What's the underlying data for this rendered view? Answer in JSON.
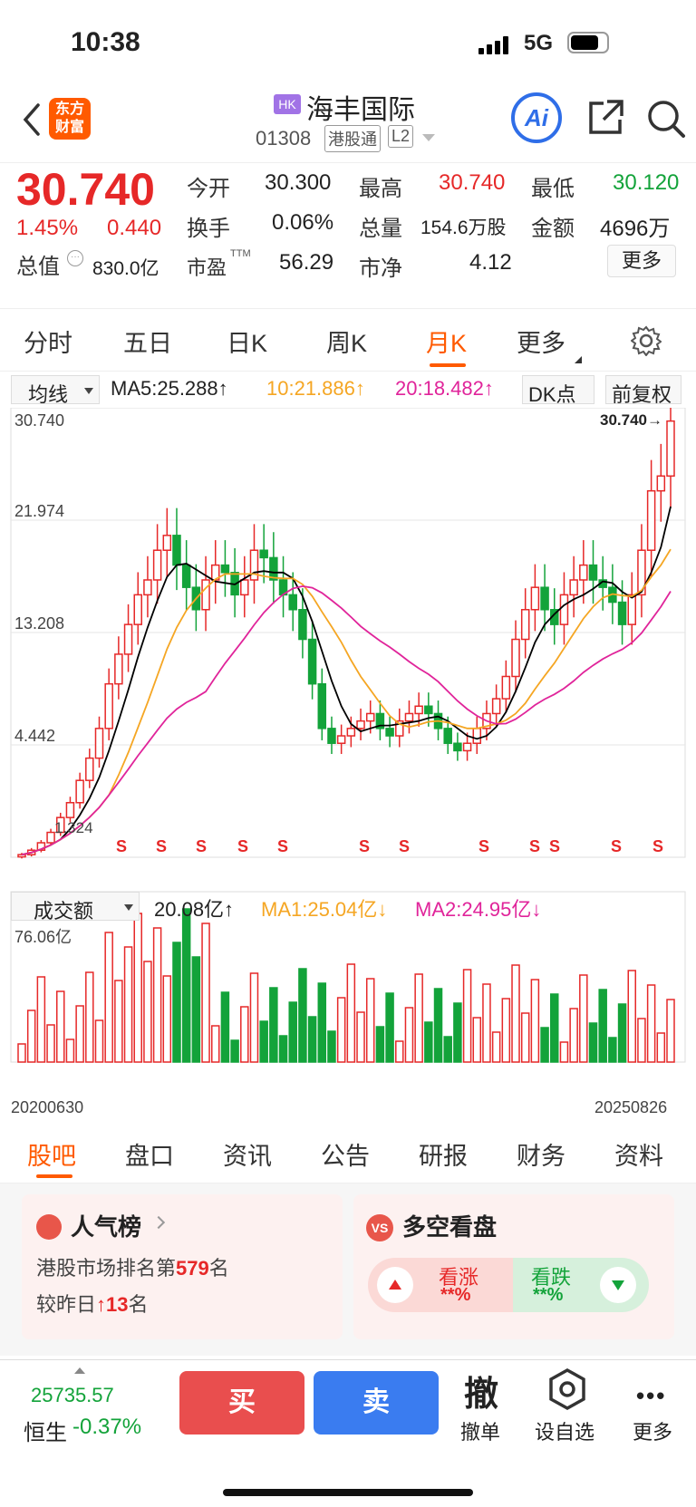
{
  "status": {
    "time": "10:38",
    "network": "5G"
  },
  "header": {
    "logo_line1": "东方",
    "logo_line2": "财富",
    "market_badge": "HK",
    "name": "海丰国际",
    "code": "01308",
    "tag1": "港股通",
    "tag2": "L2"
  },
  "quote": {
    "price": "30.740",
    "change_pct": "1.45%",
    "change": "0.440",
    "open_label": "今开",
    "open": "30.300",
    "high_label": "最高",
    "high": "30.740",
    "low_label": "最低",
    "low": "30.120",
    "turnover_label": "换手",
    "turnover": "0.06%",
    "volume_label": "总量",
    "volume": "154.6万股",
    "amount_label": "金额",
    "amount": "4696万",
    "mcap_label": "总值",
    "mcap": "830.0亿",
    "pe_label": "市盈",
    "pe_sup": "TTM",
    "pe": "56.29",
    "pb_label": "市净",
    "pb": "4.12",
    "more": "更多"
  },
  "period_tabs": [
    "分时",
    "五日",
    "日K",
    "周K",
    "月K",
    "更多"
  ],
  "active_tab": "月K",
  "chart_toolbar": {
    "ma_select": "均线",
    "ma5": "MA5:25.288↑",
    "ma10": "10:21.886↑",
    "ma20": "20:18.482↑",
    "dk": "DK点",
    "adjust": "前复权"
  },
  "chart_data": {
    "type": "candlestick",
    "y_ticks": [
      "30.740",
      "21.974",
      "13.208",
      "4.442",
      "1.324"
    ],
    "last_price_label": "30.740→",
    "low_price_label": "1.324",
    "x_start": "20200630",
    "x_end": "20250826",
    "signal_label": "S",
    "signals": 12
  },
  "vol_toolbar": {
    "select": "成交额",
    "vol": "20.08亿↑",
    "ma1": "MA1:25.04亿↓",
    "ma2": "MA2:24.95亿↓",
    "max": "76.06亿"
  },
  "bottom_tabs": [
    "股吧",
    "盘口",
    "资讯",
    "公告",
    "研报",
    "财务",
    "资料"
  ],
  "cards": {
    "popularity_title": "人气榜",
    "popularity_line1_a": "港股市场排名第",
    "popularity_rank": "579",
    "popularity_line1_b": "名",
    "popularity_line2_a": "较昨日",
    "popularity_up": "13",
    "popularity_line2_b": "名",
    "sentiment_title": "多空看盘",
    "bull_label": "看涨",
    "bull_val": "**%",
    "bear_label": "看跌",
    "bear_val": "**%"
  },
  "bottombar": {
    "index_value": "25735.57",
    "index_name": "恒生",
    "index_change": "-0.37%",
    "buy": "买",
    "sell": "卖",
    "cancel_icon": "撤",
    "cancel": "撤单",
    "watch": "设自选",
    "more": "更多"
  },
  "colors": {
    "up": "#e62828",
    "down": "#13a33a",
    "accent": "#ff5a00",
    "ma5": "#000000",
    "ma10": "#f5a623",
    "ma20": "#e0249a"
  }
}
